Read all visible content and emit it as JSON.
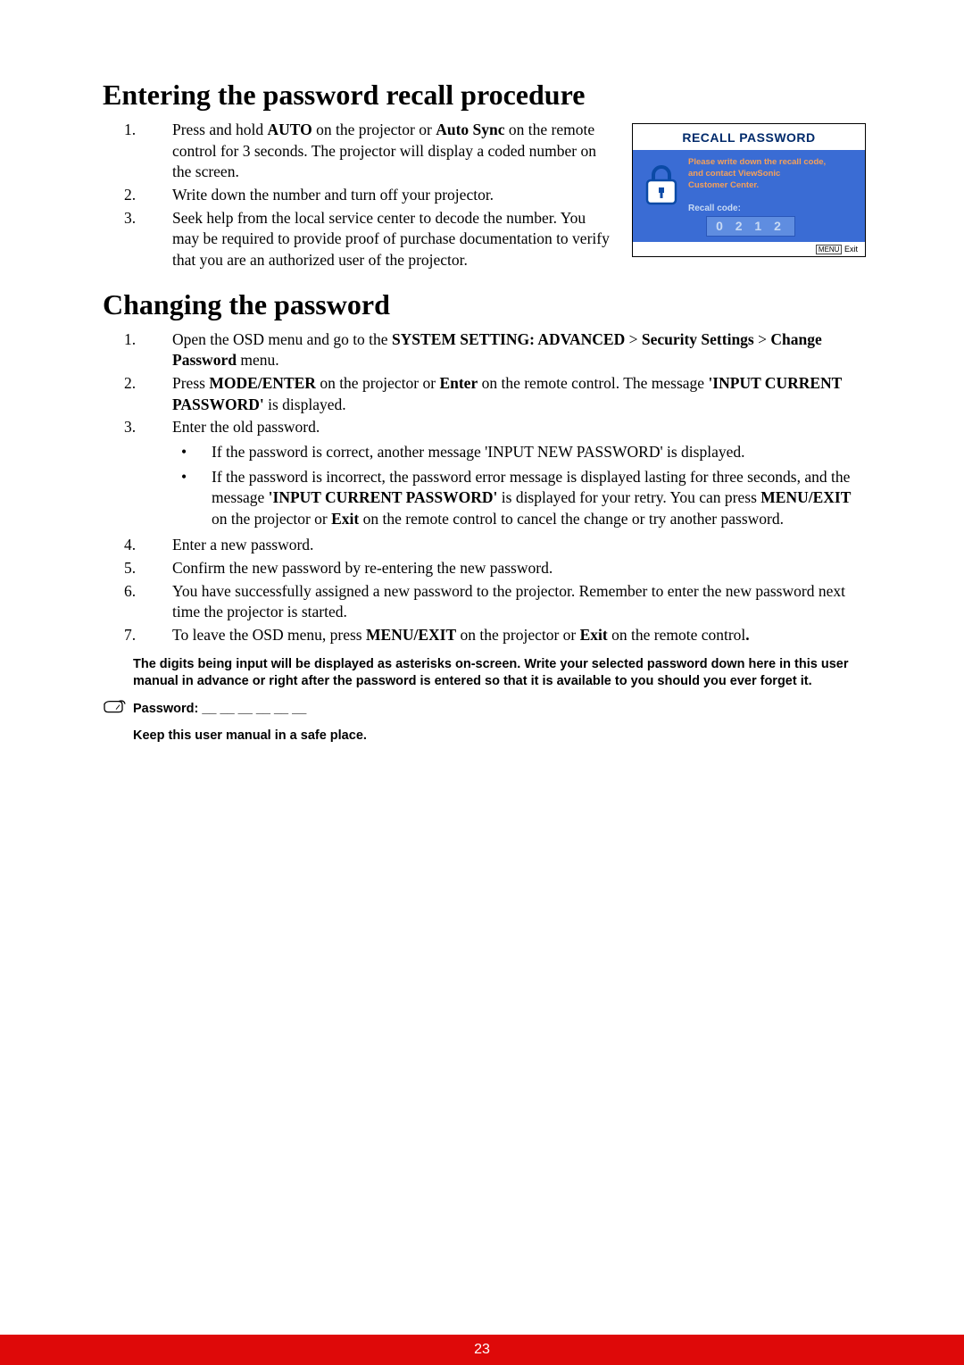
{
  "section1": {
    "heading": "Entering the password recall procedure",
    "items": [
      {
        "num": "1.",
        "segments": [
          {
            "t": "Press and hold "
          },
          {
            "t": "AUTO",
            "b": true
          },
          {
            "t": " on the projector or "
          },
          {
            "t": "Auto Sync",
            "b": true
          },
          {
            "t": " on the remote control for 3 seconds. The projector will display a coded number on the screen."
          }
        ]
      },
      {
        "num": "2.",
        "segments": [
          {
            "t": "Write down the number and turn off your projector."
          }
        ]
      },
      {
        "num": "3.",
        "segments": [
          {
            "t": "Seek help from the local service center to decode the number. You may be required to provide proof of purchase documentation to verify that you are an authorized user of the projector."
          }
        ]
      }
    ],
    "figure": {
      "title": "RECALL PASSWORD",
      "msg_line1": "Please write down the recall code,",
      "msg_line2": "and contact ViewSonic",
      "msg_line3": "Customer Center.",
      "code_label": "Recall code:",
      "code_value": "0 2 1 2",
      "menu_label": "MENU",
      "exit_label": "Exit",
      "colors": {
        "panel_bg": "#3a6cd4",
        "title_color": "#002a6b",
        "msg_color": "#f5a05a",
        "label_color": "#c8daf4",
        "codebox_bg": "#5f8de0",
        "codebox_border": "#2a57b8",
        "lock_stroke": "#0b4aa6",
        "lock_fill": "#ffffff"
      }
    }
  },
  "section2": {
    "heading": "Changing the password",
    "items": [
      {
        "num": "1.",
        "segments": [
          {
            "t": "Open the OSD menu and go to the "
          },
          {
            "t": "SYSTEM SETTING: ADVANCED",
            "b": true
          },
          {
            "t": " > "
          },
          {
            "t": "Security Settings",
            "b": true
          },
          {
            "t": " > "
          },
          {
            "t": "Change Password",
            "b": true
          },
          {
            "t": " menu."
          }
        ]
      },
      {
        "num": "2.",
        "segments": [
          {
            "t": "Press "
          },
          {
            "t": "MODE/ENTER",
            "b": true
          },
          {
            "t": " on the projector or "
          },
          {
            "t": "Enter",
            "b": true
          },
          {
            "t": " on the remote control. The message "
          },
          {
            "t": "'INPUT CURRENT PASSWORD'",
            "b": true
          },
          {
            "t": " is displayed."
          }
        ]
      },
      {
        "num": "3.",
        "segments": [
          {
            "t": "Enter the old password."
          }
        ],
        "sub": [
          {
            "segments": [
              {
                "t": "If the password is correct, another message 'INPUT NEW PASSWORD' is displayed."
              }
            ]
          },
          {
            "segments": [
              {
                "t": "If the password is incorrect, the password error message is displayed lasting for three seconds, and the message "
              },
              {
                "t": "'INPUT CURRENT PASSWORD'",
                "b": true
              },
              {
                "t": " is displayed for your retry. You can press "
              },
              {
                "t": "MENU/EXIT",
                "b": true
              },
              {
                "t": " on the projector or "
              },
              {
                "t": "Exit",
                "b": true
              },
              {
                "t": " on the remote control to cancel the change or try another password."
              }
            ]
          }
        ]
      },
      {
        "num": "4.",
        "segments": [
          {
            "t": "Enter a new password."
          }
        ]
      },
      {
        "num": "5.",
        "segments": [
          {
            "t": "Confirm the new password by re-entering the new password."
          }
        ]
      },
      {
        "num": "6.",
        "segments": [
          {
            "t": "You have successfully assigned a new password to the projector. Remember to enter the new password next time the projector is started."
          }
        ]
      },
      {
        "num": "7.",
        "segments": [
          {
            "t": "To leave the OSD menu, press "
          },
          {
            "t": "MENU/EXIT",
            "b": true
          },
          {
            "t": " on the projector or "
          },
          {
            "t": "Exit",
            "b": true
          },
          {
            "t": " on the remote control"
          },
          {
            "t": ".",
            "b": true
          }
        ]
      }
    ]
  },
  "note": {
    "para1": "The digits being input will be displayed as asterisks on-screen. Write your selected password down here in this user manual in advance or right after the password is entered so that it is available to you should you ever forget it.",
    "para2": "Password: __ __ __ __ __ __",
    "para3": "Keep this user manual in a safe place."
  },
  "page_number": "23",
  "footer_bg": "#de0909"
}
